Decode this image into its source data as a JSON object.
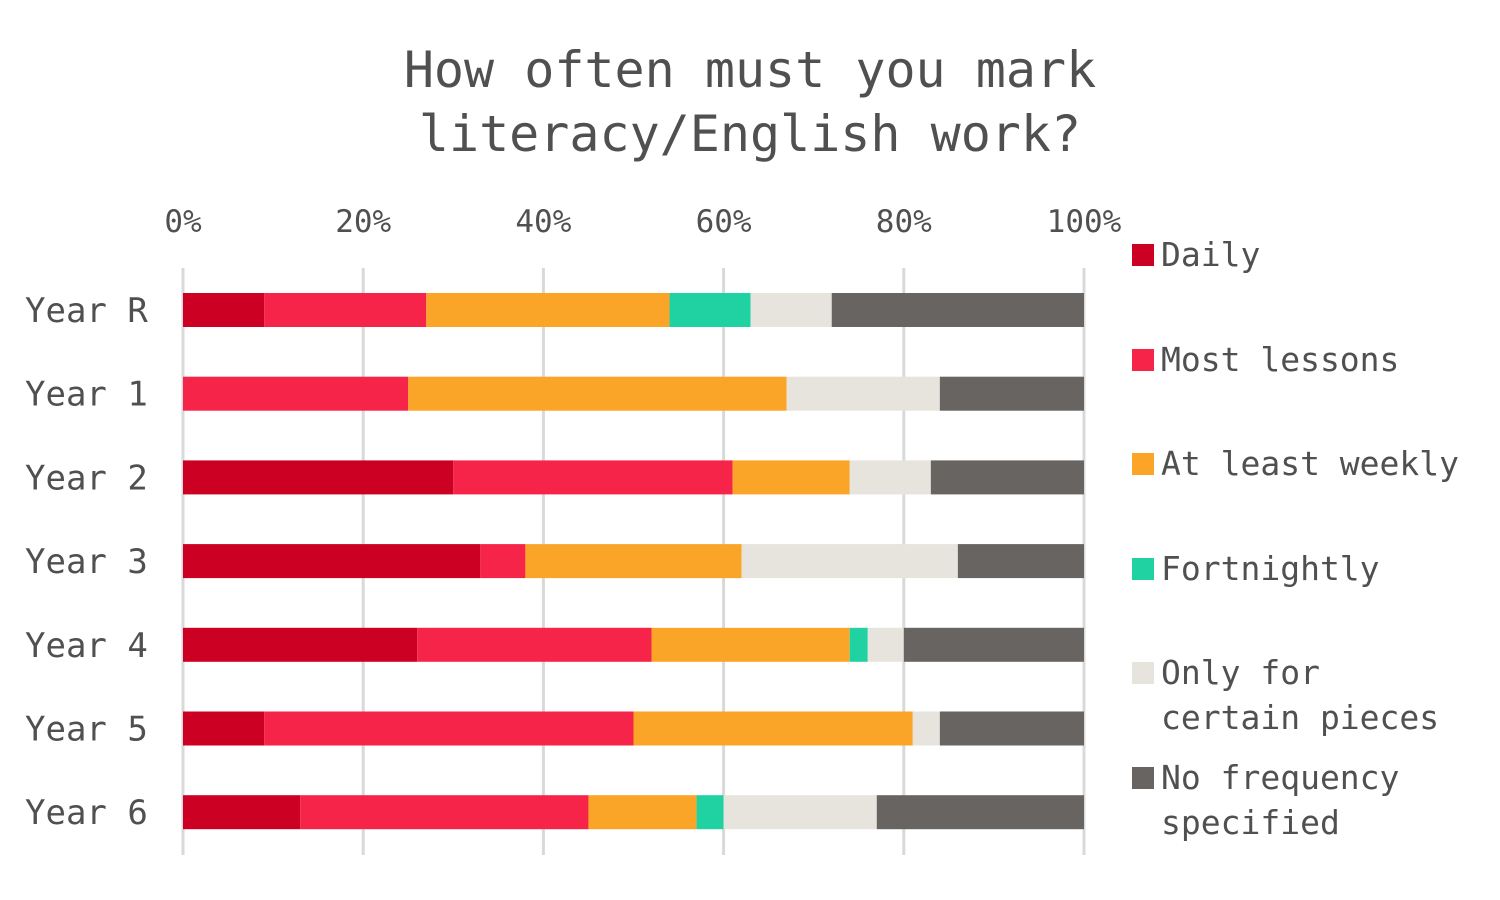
{
  "chart_data": {
    "type": "bar",
    "orientation": "horizontal",
    "stacked": true,
    "percent_stacked": true,
    "title": "How often must you mark literacy/English work?",
    "title_lines": [
      "How often must you mark",
      "literacy/English work?"
    ],
    "categories": [
      "Year R",
      "Year 1",
      "Year 2",
      "Year 3",
      "Year 4",
      "Year 5",
      "Year 6"
    ],
    "x_ticks": [
      "0%",
      "20%",
      "40%",
      "60%",
      "80%",
      "100%"
    ],
    "xlim": [
      0,
      100
    ],
    "x_axis_position": "top",
    "grid": true,
    "legend_position": "right",
    "series": [
      {
        "name": "Daily",
        "color": "#cc0022",
        "values": [
          9,
          0,
          30,
          33,
          26,
          9,
          13
        ]
      },
      {
        "name": "Most lessons",
        "color": "#f7244a",
        "values": [
          18,
          25,
          31,
          5,
          26,
          41,
          32
        ]
      },
      {
        "name": "At least weekly",
        "color": "#faa528",
        "values": [
          27,
          42,
          13,
          24,
          22,
          31,
          12
        ]
      },
      {
        "name": "Fortnightly",
        "color": "#20d1a2",
        "values": [
          9,
          0,
          0,
          0,
          2,
          0,
          3
        ]
      },
      {
        "name": "Only for certain pieces",
        "color": "#e6e4dc",
        "legend_label": "Only for\ncertain pieces",
        "values": [
          9,
          17,
          9,
          24,
          4,
          3,
          17
        ]
      },
      {
        "name": "No frequency specified",
        "color": "#686462",
        "legend_label": "No frequency\nspecified",
        "values": [
          28,
          16,
          17,
          14,
          20,
          16,
          23
        ]
      }
    ]
  }
}
